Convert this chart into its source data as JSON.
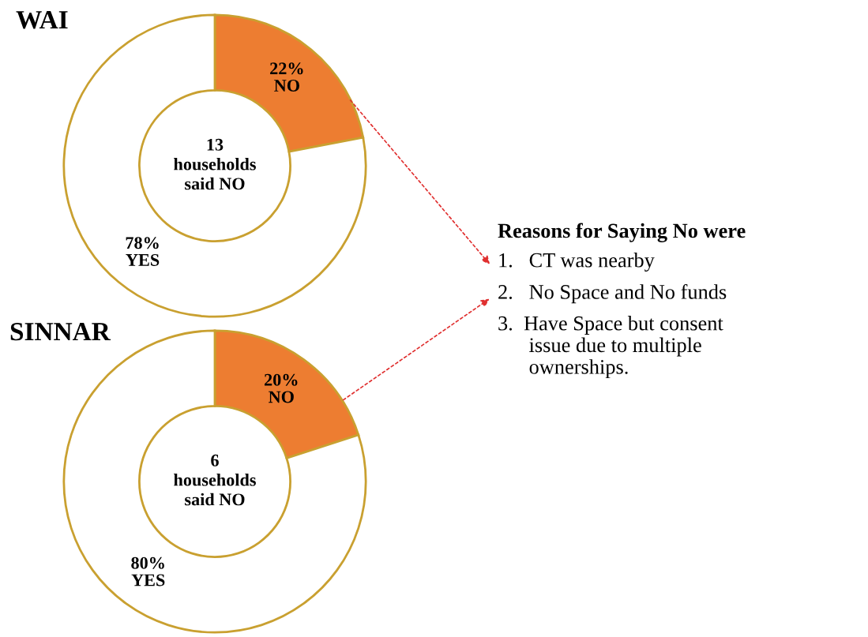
{
  "chart_data": [
    {
      "type": "donut",
      "title": "WAI",
      "categories": [
        "NO",
        "YES"
      ],
      "values": [
        22,
        78
      ],
      "colors": [
        "#ed7d31",
        "#ffffff"
      ],
      "value_labels": [
        "22%",
        "78%"
      ],
      "annotations": [
        "13\nhouseholds\nsaid NO"
      ]
    },
    {
      "type": "donut",
      "title": "SINNAR",
      "categories": [
        "NO",
        "YES"
      ],
      "values": [
        20,
        80
      ],
      "colors": [
        "#ed7d31",
        "#ffffff"
      ],
      "value_labels": [
        "20%",
        "80%"
      ],
      "annotations": [
        "6\nhouseholds\nsaid NO"
      ]
    },
    {
      "type": "other",
      "title": "Reasons for Saying No were",
      "annotations": [
        "1.   CT was nearby",
        "2.   No Space and No funds",
        "3.  Have Space but consent\n      issue due to multiple\n      ownerships."
      ]
    }
  ]
}
